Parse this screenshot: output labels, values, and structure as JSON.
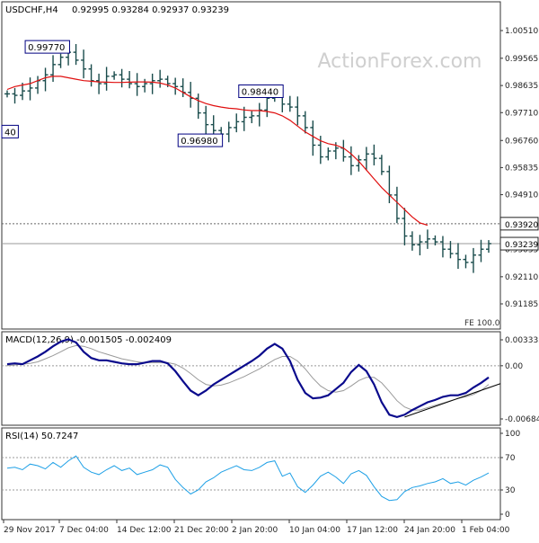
{
  "header": {
    "symbol": "USDCHF,H4",
    "ohlc": "0.92995 0.93284 0.92937 0.93239"
  },
  "watermark": "ActionForex.com",
  "colors": {
    "bar": "#1a4c4c",
    "ma": "#e01010",
    "macd": "#0a0a8c",
    "signal": "#9a9a9a",
    "rsi": "#1ea0e6",
    "grid_dotted": "#999999",
    "frame": "#333333",
    "watermark": "#cfcfcf"
  },
  "chart_data": [
    {
      "type": "line",
      "title": "USDCHF,H4",
      "subtitle": "0.92995 0.93284 0.92937 0.93239",
      "ylim": [
        0.91185,
        1.0051
      ],
      "y_ticks": [
        "1.00510",
        "0.99565",
        "0.98635",
        "0.97710",
        "0.96760",
        "0.95835",
        "0.94910",
        "0.93920",
        "0.93035",
        "0.92110",
        "0.91185"
      ],
      "x_ticks": [
        "29 Nov 2017",
        "7 Dec 04:00",
        "14 Dec 12:00",
        "21 Dec 20:00",
        "2 Jan 20:00",
        "10 Jan 04:00",
        "17 Jan 12:00",
        "24 Jan 20:00",
        "1 Feb 04:00"
      ],
      "series": [
        {
          "values": [
            0.9835,
            0.983,
            0.9845,
            0.9855,
            0.988,
            0.99,
            0.9935,
            0.996,
            0.9977,
            0.995,
            0.992,
            0.988,
            0.987,
            0.9895,
            0.99,
            0.9885,
            0.987,
            0.986,
            0.987,
            0.988,
            0.9885,
            0.987,
            0.986,
            0.984,
            0.982,
            0.977,
            0.973,
            0.971,
            0.9698,
            0.972,
            0.974,
            0.9755,
            0.976,
            0.978,
            0.982,
            0.9844,
            0.98,
            0.979,
            0.976,
            0.972,
            0.966,
            0.962,
            0.964,
            0.965,
            0.962,
            0.959,
            0.961,
            0.963,
            0.9615,
            0.957,
            0.949,
            0.941,
            0.935,
            0.932,
            0.933,
            0.934,
            0.933,
            0.9305,
            0.929,
            0.927,
            0.926,
            0.9285,
            0.9305,
            0.9324
          ]
        },
        {
          "values": [
            0.985,
            0.986,
            0.9865,
            0.987,
            0.988,
            0.989,
            0.9895,
            0.9895,
            0.989,
            0.9885,
            0.988,
            0.9878,
            0.9876,
            0.9875,
            0.9874,
            0.9874,
            0.9875,
            0.9876,
            0.9876,
            0.9875,
            0.9872,
            0.9865,
            0.9855,
            0.984,
            0.9825,
            0.9812,
            0.9802,
            0.9795,
            0.979,
            0.9786,
            0.9784,
            0.978,
            0.9778,
            0.9778,
            0.9775,
            0.977,
            0.976,
            0.9745,
            0.9725,
            0.9705,
            0.969,
            0.9675,
            0.9665,
            0.966,
            0.965,
            0.963,
            0.9605,
            0.9575,
            0.9545,
            0.9515,
            0.949,
            0.9465,
            0.944,
            0.9415,
            0.9395,
            0.9387
          ]
        }
      ],
      "annotations": [
        {
          "label": "0.99770",
          "x": 8,
          "y": 0.9977
        },
        {
          "label": "0.98440",
          "x": 35,
          "y": 0.9844
        },
        {
          "label": "0.96980",
          "x": 28,
          "y": 0.9698
        },
        {
          "label": "40",
          "x": 0,
          "y": 0.974
        }
      ],
      "horizontal_lines": [
        {
          "value": 0.9392,
          "label": "0.93920",
          "style": "dotted"
        },
        {
          "value": 0.93239,
          "label": "0.93239",
          "style": "solid"
        }
      ],
      "corner_label": "FE 100.0"
    },
    {
      "type": "line",
      "title": "MACD(12,26,9) -0.001505 -0.002409",
      "ylim": [
        -0.006843,
        0.003335
      ],
      "y_ticks": [
        "0.003335",
        "0.00",
        "-0.006843"
      ],
      "zero_line": "dotted",
      "series": [
        {
          "values": [
            0.0002,
            0.0003,
            0.0002,
            0.0007,
            0.0012,
            0.0018,
            0.0025,
            0.0031,
            0.0034,
            0.003,
            0.0018,
            0.001,
            0.0007,
            0.0007,
            0.0005,
            0.0003,
            0.0002,
            0.0002,
            0.0004,
            0.0006,
            0.0006,
            0.0003,
            -0.0007,
            -0.002,
            -0.0032,
            -0.0038,
            -0.0032,
            -0.0024,
            -0.0018,
            -0.0012,
            -0.0006,
            0.0,
            0.0006,
            0.0013,
            0.0022,
            0.0028,
            0.0022,
            0.0006,
            -0.0018,
            -0.0035,
            -0.0042,
            -0.0041,
            -0.0038,
            -0.003,
            -0.0022,
            -0.0008,
            0.0001,
            -0.0007,
            -0.0024,
            -0.0047,
            -0.0063,
            -0.0066,
            -0.0063,
            -0.0057,
            -0.0052,
            -0.0047,
            -0.0044,
            -0.004,
            -0.0038,
            -0.0038,
            -0.0035,
            -0.0028,
            -0.0022,
            -0.0015
          ]
        },
        {
          "values": [
            0.0,
            0.0001,
            0.0002,
            0.0003,
            0.0005,
            0.0009,
            0.0013,
            0.0018,
            0.0023,
            0.0026,
            0.0025,
            0.0022,
            0.0018,
            0.0015,
            0.0012,
            0.0009,
            0.0007,
            0.0005,
            0.0004,
            0.0004,
            0.0004,
            0.0004,
            0.0002,
            -0.0003,
            -0.001,
            -0.0018,
            -0.0024,
            -0.0026,
            -0.0025,
            -0.0022,
            -0.0018,
            -0.0014,
            -0.0009,
            -0.0004,
            0.0002,
            0.0008,
            0.0012,
            0.0012,
            0.0006,
            -0.0004,
            -0.0016,
            -0.0026,
            -0.0032,
            -0.0034,
            -0.0032,
            -0.0026,
            -0.0019,
            -0.0015,
            -0.0015,
            -0.0022,
            -0.0033,
            -0.0045,
            -0.0053,
            -0.0057,
            -0.0057,
            -0.0054,
            -0.0051,
            -0.0048,
            -0.0045,
            -0.0042,
            -0.004,
            -0.0037,
            -0.0032,
            -0.0024
          ]
        }
      ],
      "trendline": [
        {
          "x": 52,
          "y": -0.0066
        },
        {
          "x": 63,
          "y": -0.003
        }
      ]
    },
    {
      "type": "line",
      "title": "RSI(14) 50.7247",
      "ylim": [
        0,
        100
      ],
      "y_ticks": [
        "100",
        "70",
        "30",
        "0"
      ],
      "reference_lines": [
        70,
        30
      ],
      "series": [
        {
          "values": [
            57,
            58,
            55,
            62,
            60,
            56,
            64,
            58,
            66,
            72,
            58,
            52,
            49,
            55,
            60,
            54,
            57,
            49,
            52,
            55,
            61,
            58,
            43,
            33,
            25,
            30,
            40,
            45,
            52,
            56,
            60,
            55,
            54,
            58,
            64,
            66,
            47,
            51,
            34,
            27,
            36,
            47,
            52,
            46,
            38,
            50,
            54,
            48,
            34,
            22,
            17,
            18,
            28,
            33,
            35,
            38,
            40,
            44,
            38,
            40,
            36,
            42,
            46,
            51
          ]
        }
      ]
    }
  ]
}
